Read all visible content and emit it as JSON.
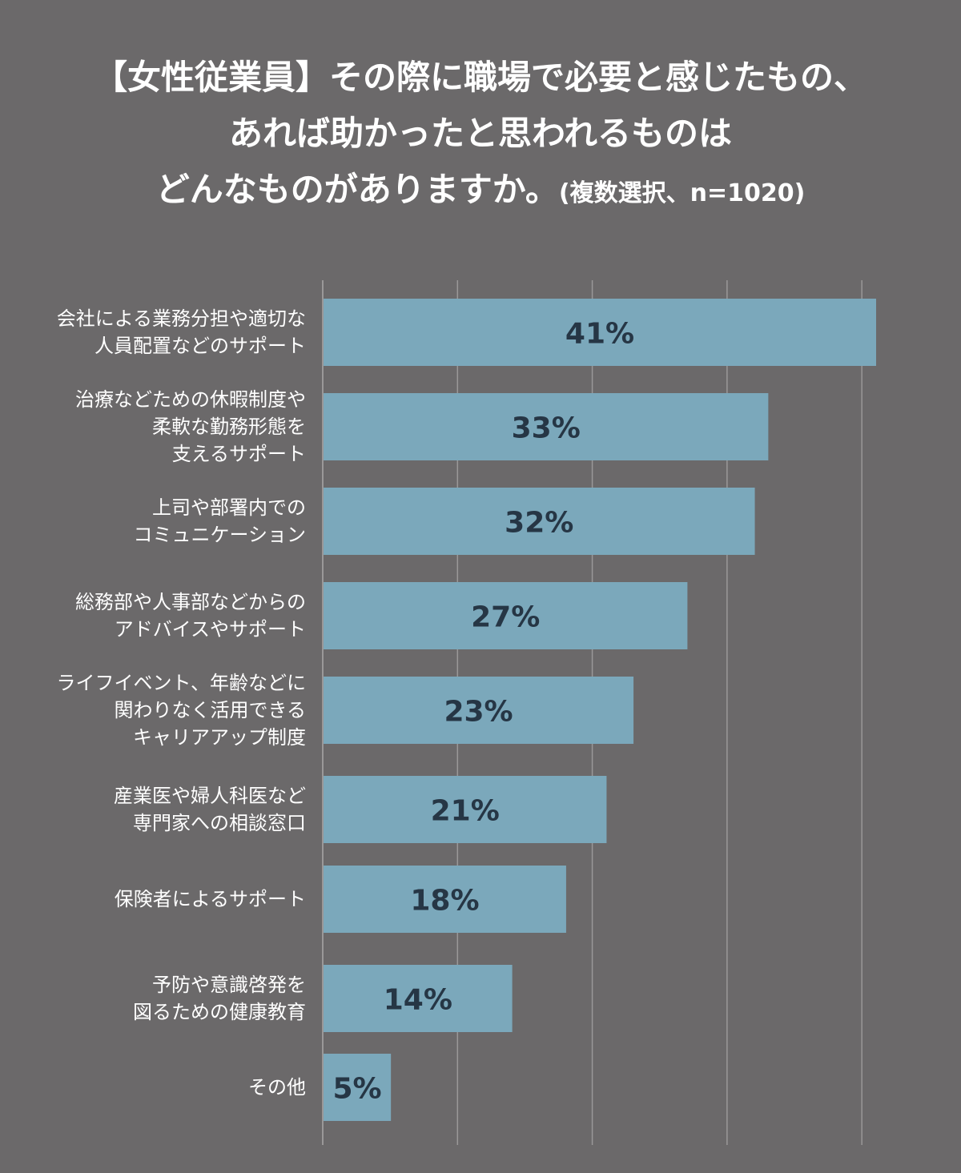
{
  "title": {
    "line1": "【女性従業員】その際に職場で必要と感じたもの、",
    "line2": "あれば助かったと思われるものは",
    "line3": "どんなものがありますか。",
    "note": "(複数選択、n=1020)"
  },
  "colors": {
    "background": "#6b696a",
    "bar": "#7ba8bb",
    "value_text": "#263645",
    "gridline": "#9a9898"
  },
  "chart_data": {
    "type": "bar",
    "orientation": "horizontal",
    "xlim": [
      0,
      41
    ],
    "grid": true,
    "categories": [
      [
        "会社による業務分担や適切な",
        "人員配置などのサポート"
      ],
      [
        "治療などための休暇制度や",
        "柔軟な勤務形態を",
        "支えるサポート"
      ],
      [
        "上司や部署内での",
        "コミュニケーション"
      ],
      [
        "総務部や人事部などからの",
        "アドバイスやサポート"
      ],
      [
        "ライフイベント、年齢などに",
        "関わりなく活用できる",
        "キャリアアップ制度"
      ],
      [
        "産業医や婦人科医など",
        "専門家への相談窓口"
      ],
      [
        "保険者によるサポート"
      ],
      [
        "予防や意識啓発を",
        "図るための健康教育"
      ],
      [
        "その他"
      ]
    ],
    "values": [
      41,
      33,
      32,
      27,
      23,
      21,
      18,
      14,
      5
    ],
    "value_labels": [
      "41%",
      "33%",
      "32%",
      "27%",
      "23%",
      "21%",
      "18%",
      "14%",
      "5%"
    ]
  }
}
